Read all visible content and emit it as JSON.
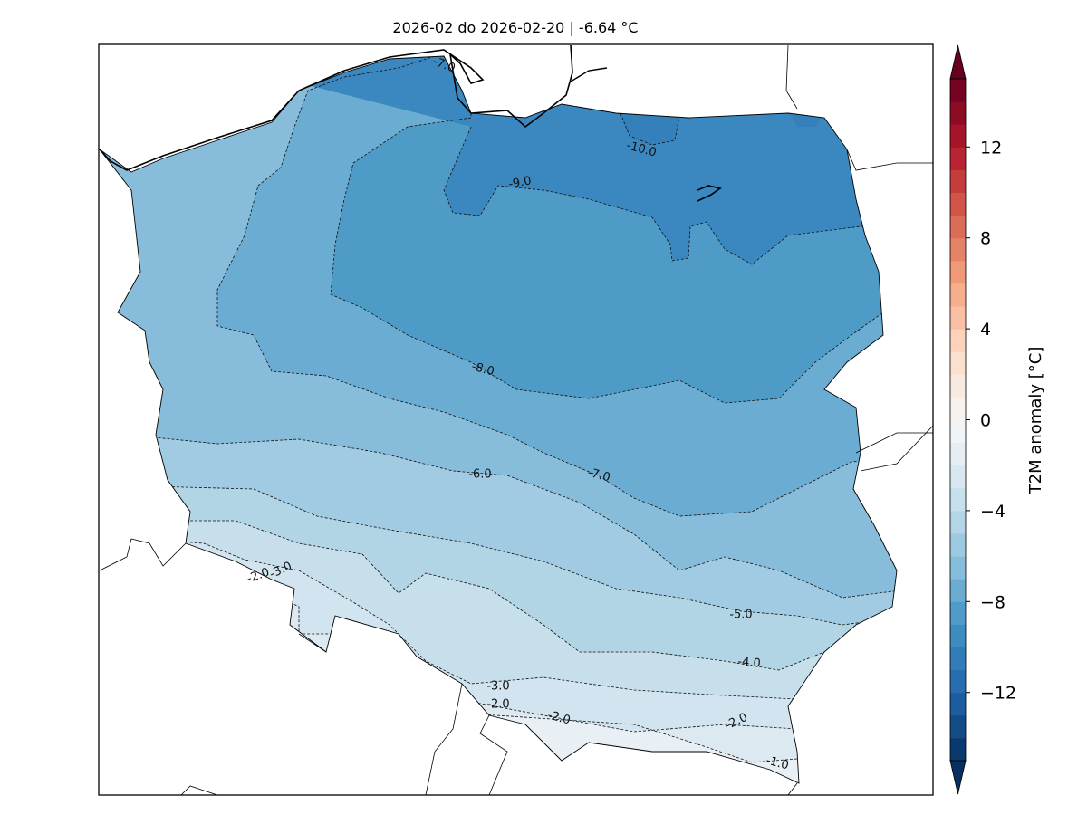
{
  "title": "2026-02 do 2026-02-20 | -6.64 °C",
  "colorbar": {
    "label": "T2M anomaly [°C]",
    "min": -15,
    "max": 15,
    "step": 1,
    "extend": "both",
    "colormap": "RdBu_r",
    "anchor_colors": [
      "#053061",
      "#2166ac",
      "#4393c3",
      "#92c5de",
      "#d1e5f0",
      "#f7f7f7",
      "#fddbc7",
      "#f4a582",
      "#d6604d",
      "#b2182b",
      "#67001f"
    ],
    "ticks": [
      "−12",
      "−8",
      "−4",
      "0",
      "4",
      "8",
      "12"
    ],
    "tick_values": [
      -12,
      -8,
      -4,
      0,
      4,
      8,
      12
    ]
  },
  "map": {
    "region": "Poland",
    "mean_anomaly": -6.64,
    "band_colors": {
      "gt_-1": "#e8eff5",
      "-1_-2": "#dde9f1",
      "-2_-3": "#d1e4ef",
      "-3_-4": "#c6dfeb",
      "-4_-5": "#b2d5e6",
      "-5_-6": "#a1cbe2",
      "-6_-7": "#87bcda",
      "-7_-8": "#6badd2",
      "-8_-9": "#4f9bc8",
      "-9_-10": "#3a88bf",
      "lt_-10": "#3480bb"
    },
    "contour_labels": [
      "-7.0",
      "-10.0",
      "-9.0",
      "-8.0",
      "-6.0",
      "-7.0",
      "-5.0",
      "-4.0",
      "-3.0",
      "-2.0",
      "-3.0",
      "-2.0",
      "-2.0",
      "-2.0",
      "-1.0"
    ]
  }
}
